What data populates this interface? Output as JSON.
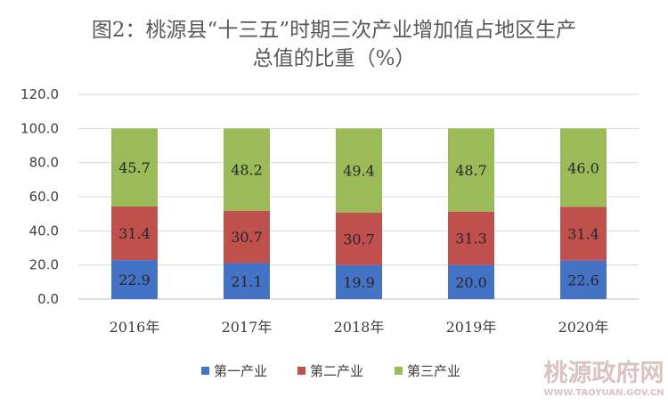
{
  "title_lines": [
    "图2：桃源县“十三五”时期三次产业增加值占地区生产",
    "总值的比重（%）"
  ],
  "watermark": {
    "name": "桃源政府网",
    "url": "WWW.TAOYUAN.GOV.CN"
  },
  "colors": {
    "primary": "#4472c4",
    "secondary": "#c0504d",
    "tertiary": "#9bbb59",
    "grid": "#d9d9d9",
    "axis": "#bfbfbf"
  },
  "chart_data": {
    "type": "bar",
    "stacked": true,
    "categories": [
      "2016年",
      "2017年",
      "2018年",
      "2019年",
      "2020年"
    ],
    "series": [
      {
        "name": "第一产业",
        "values": [
          22.9,
          21.1,
          19.9,
          20.0,
          22.6
        ],
        "labels": [
          "22.9",
          "21.1",
          "19.9",
          "20.0",
          "22.6"
        ],
        "color": "#4472c4"
      },
      {
        "name": "第二产业",
        "values": [
          31.4,
          30.7,
          30.7,
          31.3,
          31.4
        ],
        "labels": [
          "31.4",
          "30.7",
          "30.7",
          "31.3",
          "31.4"
        ],
        "color": "#c0504d"
      },
      {
        "name": "第三产业",
        "values": [
          45.7,
          48.2,
          49.4,
          48.7,
          46.0
        ],
        "labels": [
          "45.7",
          "48.2",
          "49.4",
          "48.7",
          "46.0"
        ],
        "color": "#9bbb59"
      }
    ],
    "yticks": [
      "0.0",
      "20.0",
      "40.0",
      "60.0",
      "80.0",
      "100.0",
      "120.0"
    ],
    "ylim": [
      0,
      120
    ],
    "grid": true,
    "legend_position": "bottom"
  }
}
